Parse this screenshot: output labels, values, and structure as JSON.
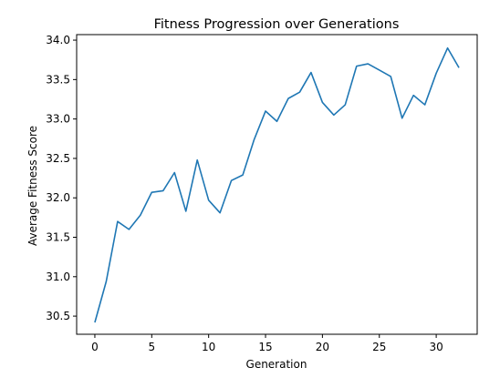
{
  "chart_data": {
    "type": "line",
    "title": "Fitness Progression over Generations",
    "xlabel": "Generation",
    "ylabel": "Average Fitness Score",
    "xlim": [
      -1.6,
      33.6
    ],
    "ylim": [
      30.27,
      34.07
    ],
    "xticks": [
      0,
      5,
      10,
      15,
      20,
      25,
      30
    ],
    "yticks": [
      30.5,
      31.0,
      31.5,
      32.0,
      32.5,
      33.0,
      33.5,
      34.0
    ],
    "ytick_labels": [
      "30.5",
      "31.0",
      "31.5",
      "32.0",
      "32.5",
      "33.0",
      "33.5",
      "34.0"
    ],
    "grid": false,
    "series": [
      {
        "color": "#1f77b4",
        "x": [
          0,
          1,
          2,
          3,
          4,
          5,
          6,
          7,
          8,
          9,
          10,
          11,
          12,
          13,
          14,
          15,
          16,
          17,
          18,
          19,
          20,
          21,
          22,
          23,
          24,
          25,
          26,
          27,
          28,
          29,
          30,
          31,
          32
        ],
        "y": [
          30.42,
          30.94,
          31.7,
          31.6,
          31.78,
          32.07,
          32.09,
          32.32,
          31.83,
          32.48,
          31.97,
          31.81,
          32.22,
          32.29,
          32.74,
          33.1,
          32.97,
          33.26,
          33.34,
          33.59,
          33.21,
          33.05,
          33.18,
          33.67,
          33.7,
          33.62,
          33.54,
          33.01,
          33.3,
          33.18,
          33.58,
          33.9,
          33.65
        ]
      }
    ]
  }
}
